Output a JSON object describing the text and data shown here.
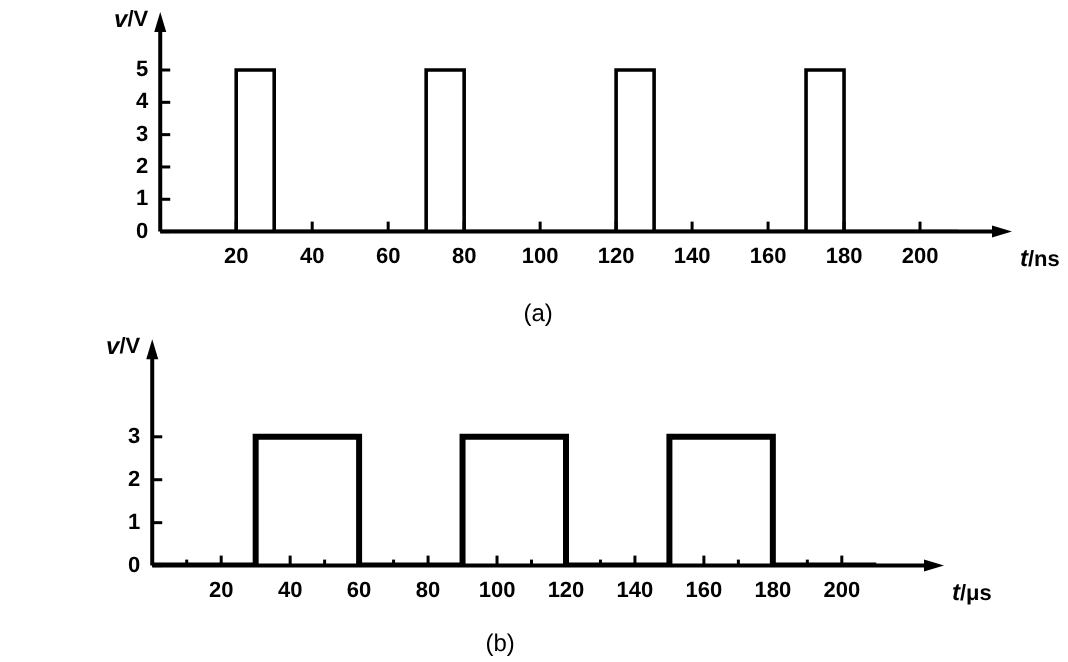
{
  "chart_data": [
    {
      "type": "step",
      "xlabel": "t/ns",
      "ylabel": "v/V",
      "annotations": [
        "(a)"
      ],
      "x": [
        0,
        20,
        30,
        70,
        80,
        120,
        130,
        170,
        180,
        210
      ],
      "series": [
        {
          "color": "#000000",
          "values": [
            0,
            5,
            0,
            5,
            0,
            5,
            0,
            5,
            0,
            0
          ]
        }
      ],
      "xlim": [
        0,
        220
      ],
      "xticks": [
        20,
        40,
        60,
        80,
        100,
        120,
        140,
        160,
        180,
        200
      ],
      "ylim": [
        0,
        6.3
      ],
      "yticks": [
        0,
        1,
        2,
        3,
        4,
        5
      ],
      "grid": false,
      "legend": false,
      "line_style": "solid",
      "marker": "none"
    },
    {
      "type": "step",
      "xlabel": "t/μs",
      "ylabel": "v/V",
      "annotations": [
        "(b)"
      ],
      "x": [
        0,
        30,
        60,
        90,
        120,
        150,
        180,
        210
      ],
      "series": [
        {
          "color": "#000000",
          "values": [
            0,
            3,
            0,
            3,
            0,
            3,
            0,
            0
          ]
        }
      ],
      "xlim": [
        0,
        225
      ],
      "xticks": [
        {
          "value": 10,
          "label": null
        },
        20,
        {
          "value": 30,
          "label": null
        },
        40,
        {
          "value": 50,
          "label": null
        },
        60,
        {
          "value": 70,
          "label": null
        },
        80,
        {
          "value": 90,
          "label": null
        },
        100,
        {
          "value": 110,
          "label": null
        },
        120,
        {
          "value": 130,
          "label": null
        },
        140,
        {
          "value": 150,
          "label": null
        },
        160,
        {
          "value": 170,
          "label": null
        },
        180,
        {
          "value": 190,
          "label": null
        },
        200
      ],
      "ylim": [
        0,
        4.9
      ],
      "yticks": [
        0,
        1,
        2,
        3
      ],
      "grid": false,
      "legend": false,
      "line_style": "solid",
      "marker": "none"
    }
  ]
}
